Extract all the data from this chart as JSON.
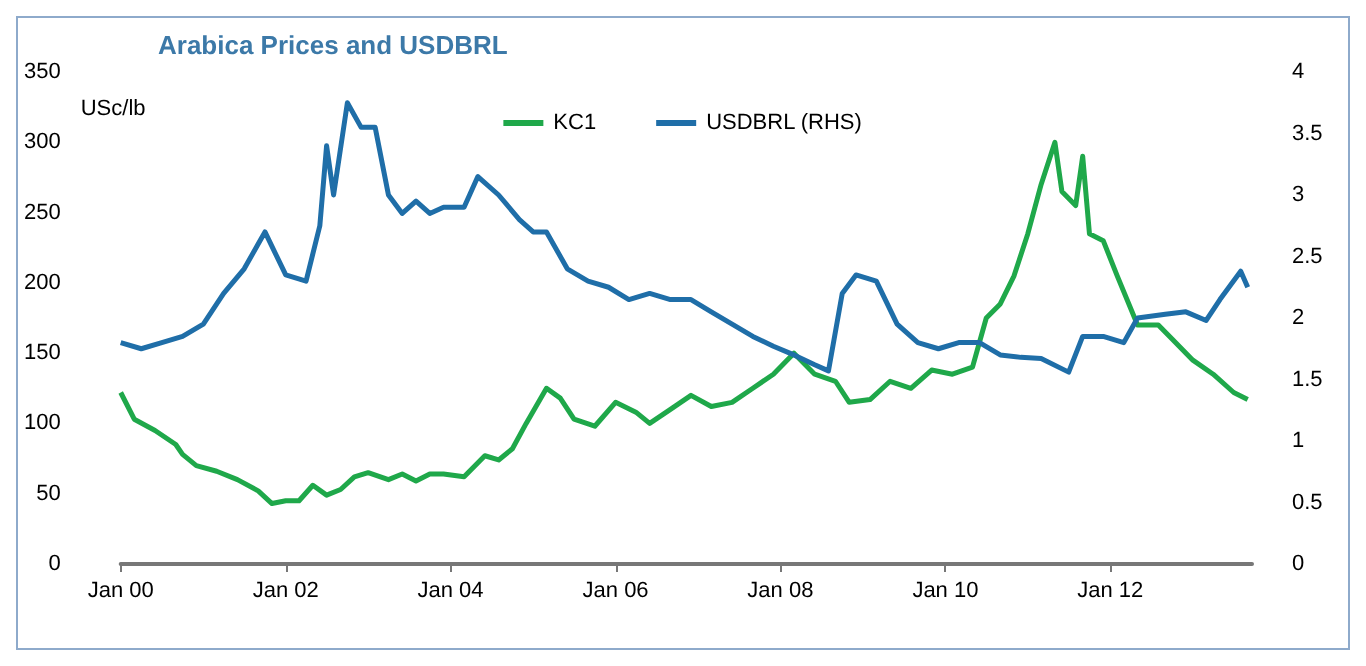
{
  "chart_data": {
    "type": "line",
    "title": "Arabica Prices and USDBRL",
    "ylabel": "USc/lb",
    "legend": "top",
    "grid": false,
    "marker": "none",
    "line_style": "solid",
    "xlim": [
      "2000-01-01",
      "2013-09-20"
    ],
    "xticks": [
      {
        "value": "2000-01-01",
        "label": "Jan 00"
      },
      {
        "value": "2002-01-01",
        "label": "Jan 02"
      },
      {
        "value": "2004-01-01",
        "label": "Jan 04"
      },
      {
        "value": "2006-01-01",
        "label": "Jan 06"
      },
      {
        "value": "2008-01-01",
        "label": "Jan 08"
      },
      {
        "value": "2010-01-01",
        "label": "Jan 10"
      },
      {
        "value": "2012-01-01",
        "label": "Jan 12"
      }
    ],
    "ylim": [
      0,
      350
    ],
    "yticks": [
      0,
      50,
      100,
      150,
      200,
      250,
      300,
      350
    ],
    "y2lim": [
      0,
      4
    ],
    "y2ticks": [
      0,
      0.5,
      1,
      1.5,
      2,
      2.5,
      3,
      3.5,
      4
    ],
    "series": [
      {
        "name": "KC1",
        "color": "#1fa84a",
        "x": [
          "2000-01",
          "2000-03",
          "2000-06",
          "2000-09",
          "2000-10",
          "2000-12",
          "2001-03",
          "2001-06",
          "2001-09",
          "2001-11",
          "2002-01",
          "2002-03",
          "2002-05",
          "2002-07",
          "2002-09",
          "2002-11",
          "2003-01",
          "2003-04",
          "2003-06",
          "2003-08",
          "2003-10",
          "2003-12",
          "2004-03",
          "2004-06",
          "2004-08",
          "2004-10",
          "2004-12",
          "2005-03",
          "2005-05",
          "2005-07",
          "2005-10",
          "2006-01",
          "2006-04",
          "2006-06",
          "2006-09",
          "2006-12",
          "2007-03",
          "2007-06",
          "2007-09",
          "2007-12",
          "2008-03",
          "2008-06",
          "2008-09",
          "2008-11",
          "2009-02",
          "2009-05",
          "2009-08",
          "2009-11",
          "2010-02",
          "2010-05",
          "2010-07",
          "2010-09",
          "2010-11",
          "2011-01",
          "2011-03",
          "2011-05",
          "2011-06",
          "2011-08",
          "2011-09",
          "2011-10",
          "2011-12",
          "2012-02",
          "2012-05",
          "2012-08",
          "2012-10",
          "2013-01",
          "2013-04",
          "2013-07",
          "2013-09"
        ],
        "values": [
          122,
          103,
          95,
          85,
          78,
          70,
          66,
          60,
          52,
          43,
          45,
          45,
          56,
          49,
          53,
          62,
          65,
          60,
          64,
          59,
          64,
          64,
          62,
          77,
          74,
          82,
          100,
          125,
          118,
          103,
          98,
          115,
          108,
          100,
          110,
          120,
          112,
          115,
          125,
          135,
          150,
          135,
          130,
          115,
          117,
          130,
          125,
          138,
          135,
          140,
          175,
          185,
          205,
          235,
          270,
          300,
          265,
          255,
          290,
          235,
          230,
          205,
          170,
          170,
          160,
          145,
          135,
          122,
          117
        ]
      },
      {
        "name": "USDBRL (RHS)",
        "color": "#1f6ea8",
        "axis": "y2",
        "x": [
          "2000-01",
          "2000-04",
          "2000-07",
          "2000-10",
          "2001-01",
          "2001-04",
          "2001-07",
          "2001-10",
          "2002-01",
          "2002-04",
          "2002-06",
          "2002-07",
          "2002-08",
          "2002-10",
          "2002-12",
          "2003-02",
          "2003-04",
          "2003-06",
          "2003-08",
          "2003-10",
          "2003-12",
          "2004-03",
          "2004-05",
          "2004-08",
          "2004-11",
          "2005-01",
          "2005-03",
          "2005-06",
          "2005-09",
          "2005-12",
          "2006-03",
          "2006-06",
          "2006-09",
          "2006-12",
          "2007-03",
          "2007-06",
          "2007-09",
          "2007-12",
          "2008-03",
          "2008-06",
          "2008-08",
          "2008-10",
          "2008-12",
          "2009-03",
          "2009-06",
          "2009-09",
          "2009-12",
          "2010-03",
          "2010-06",
          "2010-09",
          "2010-12",
          "2011-03",
          "2011-07",
          "2011-09",
          "2011-12",
          "2012-03",
          "2012-05",
          "2012-09",
          "2012-12",
          "2013-03",
          "2013-05",
          "2013-08",
          "2013-09"
        ],
        "values": [
          1.8,
          1.75,
          1.8,
          1.85,
          1.95,
          2.2,
          2.4,
          2.7,
          2.35,
          2.3,
          2.75,
          3.4,
          3.0,
          3.75,
          3.55,
          3.55,
          3.0,
          2.85,
          2.95,
          2.85,
          2.9,
          2.9,
          3.15,
          3.0,
          2.8,
          2.7,
          2.7,
          2.4,
          2.3,
          2.25,
          2.15,
          2.2,
          2.15,
          2.15,
          2.05,
          1.95,
          1.85,
          1.77,
          1.7,
          1.62,
          1.57,
          2.2,
          2.35,
          2.3,
          1.95,
          1.8,
          1.75,
          1.8,
          1.8,
          1.7,
          1.68,
          1.67,
          1.56,
          1.85,
          1.85,
          1.8,
          2.0,
          2.03,
          2.05,
          1.98,
          2.15,
          2.38,
          2.25
        ]
      }
    ]
  }
}
